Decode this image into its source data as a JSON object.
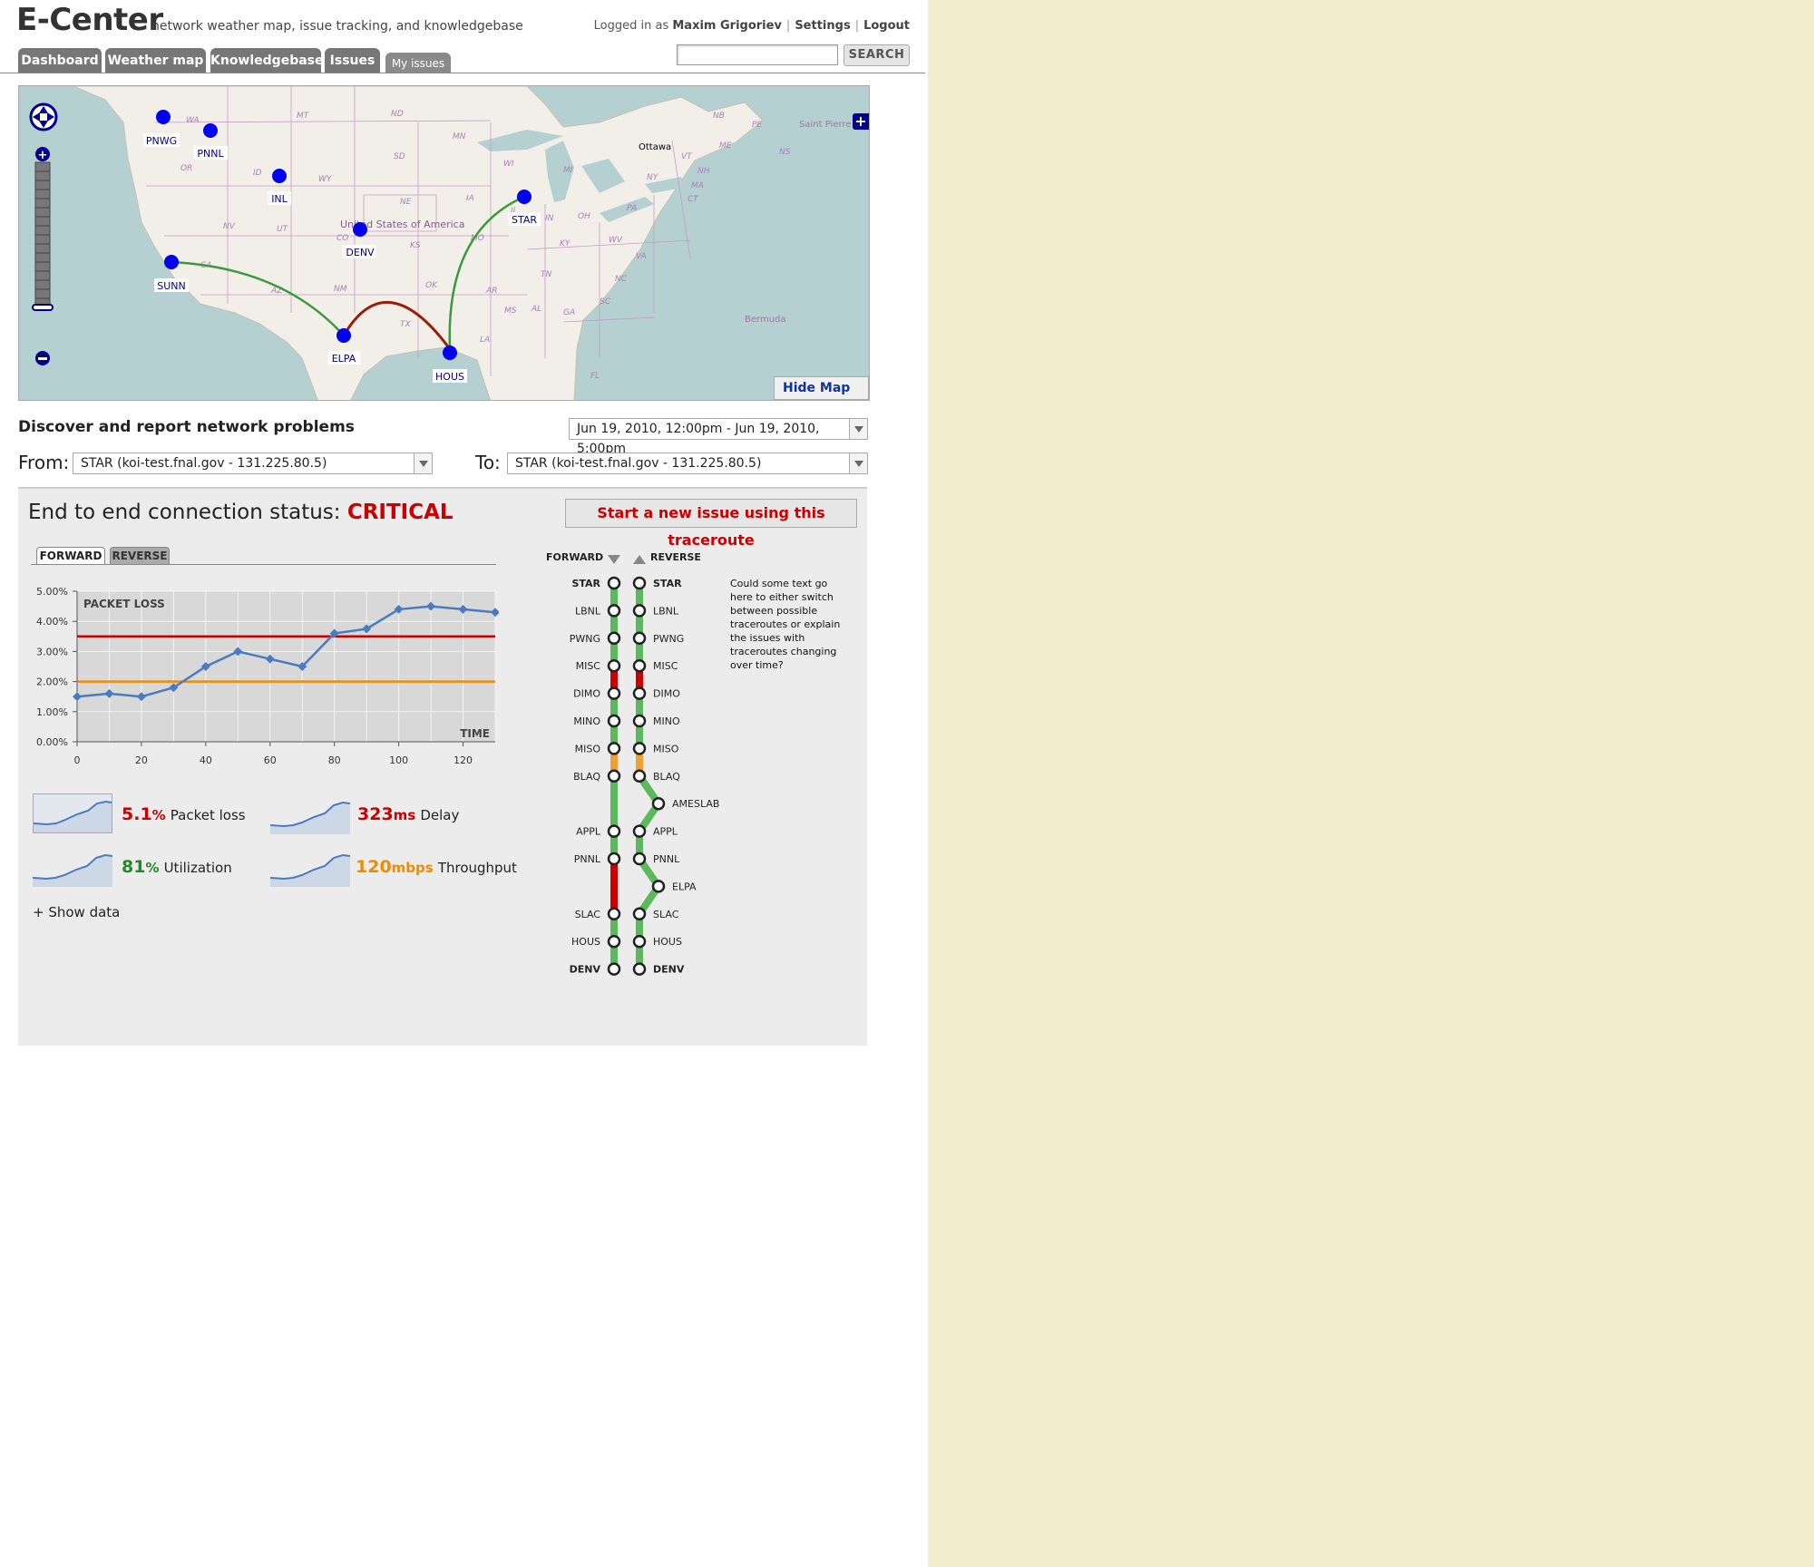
{
  "header": {
    "app_title": "E-Center",
    "tagline": "network weather map, issue tracking, and knowledgebase",
    "logged_in_prefix": "Logged in as",
    "user_name": "Maxim Grigoriev",
    "settings": "Settings",
    "logout": "Logout",
    "search_button": "SEARCH",
    "search_value": ""
  },
  "tabs": [
    {
      "label": "Dashboard"
    },
    {
      "label": "Weather map"
    },
    {
      "label": "Knowledgebase"
    },
    {
      "label": "Issues"
    },
    {
      "label": "My issues"
    }
  ],
  "map": {
    "hide_map": "Hide Map",
    "nodes": [
      "PNWG",
      "PNNL",
      "INL",
      "DENV",
      "STAR",
      "SUNN",
      "ELPA",
      "HOUS"
    ],
    "places": {
      "country": "United States of America",
      "ottawa": "Ottawa",
      "saint_pierre": "Saint Pierre",
      "bermuda": "Bermuda"
    },
    "states": [
      "WA",
      "MT",
      "ND",
      "MN",
      "OR",
      "ID",
      "SD",
      "WY",
      "WI",
      "MI",
      "NB",
      "PE",
      "ME",
      "NS",
      "VT",
      "NH",
      "MA",
      "NY",
      "CT",
      "IA",
      "NE",
      "NV",
      "UT",
      "CO",
      "IL",
      "IN",
      "OH",
      "PA",
      "KS",
      "MO",
      "KY",
      "WV",
      "VA",
      "CA",
      "AZ",
      "NM",
      "OK",
      "TN",
      "NC",
      "AR",
      "SC",
      "MS",
      "AL",
      "GA",
      "TX",
      "LA",
      "FL"
    ],
    "colors": {
      "good": "#3a9a3a",
      "critical": "#9b1c0b",
      "node": "#0000ee"
    }
  },
  "discover": {
    "title": "Discover and report network problems",
    "time_range": "Jun 19, 2010, 12:00pm - Jun 19, 2010, 5:00pm",
    "from_label": "From:",
    "from_value": "STAR (koi-test.fnal.gov - 131.225.80.5)",
    "to_label": "To:",
    "to_value": "STAR (koi-test.fnal.gov - 131.225.80.5)"
  },
  "status": {
    "title_prefix": "End to end connection status:",
    "status_value": "CRITICAL",
    "issue_button": "Start a new issue using this traceroute",
    "tab_forward": "FORWARD",
    "tab_reverse": "REVERSE",
    "show_data": "+ Show data"
  },
  "metrics": [
    {
      "value": "5.1",
      "unit": "%",
      "label": "Packet loss",
      "color": "#cc0000"
    },
    {
      "value": "323",
      "unit": "ms",
      "label": "Delay",
      "color": "#cc0000"
    },
    {
      "value": "81",
      "unit": "%",
      "label": "Utilization",
      "color": "#228b22"
    },
    {
      "value": "120",
      "unit": "mbps",
      "label": "Throughput",
      "color": "#f08c00"
    }
  ],
  "chart_data": {
    "type": "line",
    "title": "PACKET LOSS",
    "xlabel": "TIME",
    "ylabel": "",
    "x": [
      0,
      10,
      20,
      30,
      40,
      50,
      60,
      70,
      80,
      90,
      100,
      110,
      120,
      130
    ],
    "series": [
      {
        "values": [
          1.5,
          1.6,
          1.5,
          1.8,
          2.5,
          3.0,
          2.75,
          2.5,
          3.6,
          3.75,
          4.4,
          4.5,
          4.4,
          4.3
        ],
        "color": "#4a7bbf"
      }
    ],
    "thresholds": [
      {
        "value": 3.5,
        "color": "#cc0000"
      },
      {
        "value": 2.0,
        "color": "#f08c00"
      }
    ],
    "xlim": [
      0,
      130
    ],
    "ylim": [
      0,
      5
    ],
    "xticks": [
      "0",
      "20",
      "40",
      "60",
      "80",
      "100",
      "120"
    ],
    "yticks": [
      "0.00%",
      "1.00%",
      "2.00%",
      "3.00%",
      "4.00%",
      "5.00%"
    ],
    "grid": true
  },
  "traceroute": {
    "forward_label": "FORWARD",
    "reverse_label": "REVERSE",
    "forward_hops": [
      "STAR",
      "LBNL",
      "PWNG",
      "MISC",
      "DIMO",
      "MINO",
      "MISO",
      "BLAQ",
      "APPL",
      "PNNL",
      "SLAC",
      "HOUS",
      "DENV"
    ],
    "reverse_hops": [
      "STAR",
      "LBNL",
      "PWNG",
      "MISC",
      "DIMO",
      "MINO",
      "MISO",
      "BLAQ",
      "AMESLAB",
      "APPL",
      "PNNL",
      "ELPA",
      "SLAC",
      "HOUS",
      "DENV"
    ],
    "help_text": "Could some text go here to either switch between possible traceroutes or explain the issues with traceroutes changing over time?",
    "colors": {
      "good": "#5cb85c",
      "critical": "#cc0000",
      "warning": "#f0a030"
    }
  }
}
